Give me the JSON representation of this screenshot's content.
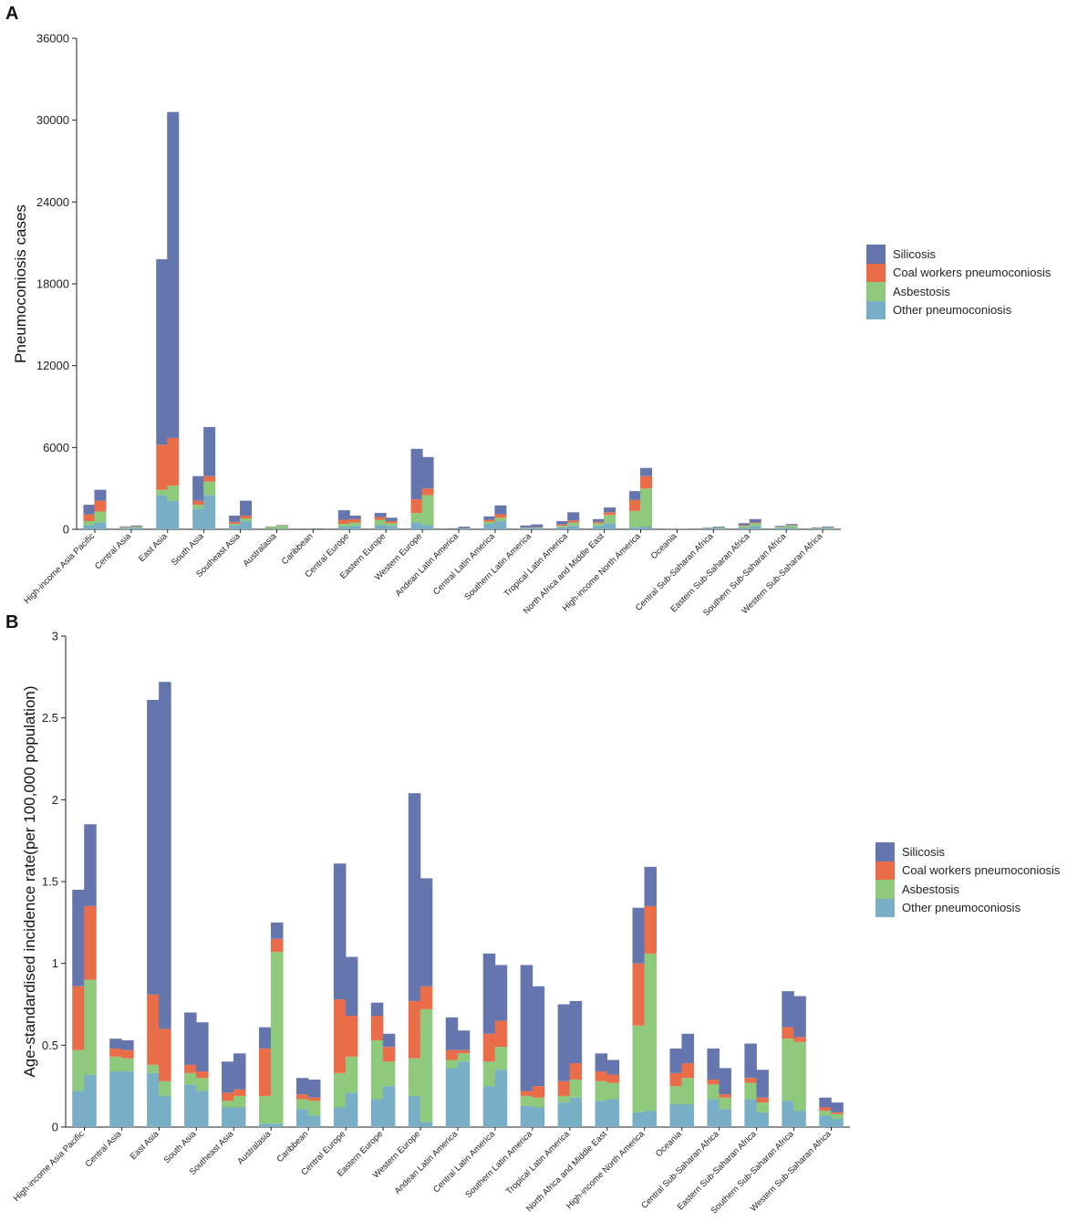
{
  "chart_data": [
    {
      "panel": "A",
      "type": "bar",
      "stacked": true,
      "title": "",
      "xlabel": "",
      "ylabel": "Pneumoconiosis cases",
      "ylim": [
        0,
        36000
      ],
      "yticks": [
        "0",
        "6000",
        "12000",
        "18000",
        "24000",
        "30000",
        "36000"
      ],
      "bars_per_category": 2,
      "categories": [
        "High-income Asia Pacific",
        "Central Asia",
        "East Asia",
        "South Asia",
        "Southeast Asia",
        "Australasia",
        "Caribbean",
        "Central Europe",
        "Eastern Europe",
        "Western Europe",
        "Andean Latin America",
        "Central Latin America",
        "Southern Latin America",
        "Tropical Latin America",
        "North Africa and Middle East",
        "High-income North America",
        "Oceania",
        "Central Sub-Saharan Africa",
        "Eastern Sub-Saharan Africa",
        "Southern Sub-Saharan Africa",
        "Western Sub-Saharan Africa"
      ],
      "series": [
        {
          "name": "Other pneumoconiosis",
          "color": "#78afc6",
          "values": [
            [
              300,
              500
            ],
            [
              80,
              100
            ],
            [
              2500,
              2100
            ],
            [
              1500,
              2500
            ],
            [
              300,
              600
            ],
            [
              20,
              30
            ],
            [
              10,
              10
            ],
            [
              200,
              250
            ],
            [
              300,
              250
            ],
            [
              500,
              300
            ],
            [
              20,
              40
            ],
            [
              400,
              600
            ],
            [
              80,
              100
            ],
            [
              150,
              250
            ],
            [
              250,
              450
            ],
            [
              150,
              200
            ],
            [
              5,
              5
            ],
            [
              30,
              60
            ],
            [
              100,
              250
            ],
            [
              80,
              100
            ],
            [
              40,
              80
            ]
          ]
        },
        {
          "name": "Asbestosis",
          "color": "#8ec97c",
          "values": [
            [
              300,
              800
            ],
            [
              60,
              80
            ],
            [
              400,
              1100
            ],
            [
              300,
              1000
            ],
            [
              100,
              200
            ],
            [
              150,
              250
            ],
            [
              10,
              20
            ],
            [
              200,
              250
            ],
            [
              400,
              200
            ],
            [
              700,
              2200
            ],
            [
              10,
              20
            ],
            [
              150,
              250
            ],
            [
              30,
              30
            ],
            [
              100,
              250
            ],
            [
              200,
              600
            ],
            [
              1200,
              2800
            ],
            [
              5,
              5
            ],
            [
              20,
              40
            ],
            [
              150,
              200
            ],
            [
              80,
              180
            ],
            [
              30,
              50
            ]
          ]
        },
        {
          "name": "Coal workers pneumoconiosis",
          "color": "#ea6d4a",
          "values": [
            [
              500,
              800
            ],
            [
              20,
              30
            ],
            [
              3300,
              3500
            ],
            [
              300,
              400
            ],
            [
              150,
              200
            ],
            [
              20,
              20
            ],
            [
              5,
              5
            ],
            [
              300,
              250
            ],
            [
              200,
              150
            ],
            [
              1000,
              500
            ],
            [
              5,
              5
            ],
            [
              150,
              250
            ],
            [
              20,
              30
            ],
            [
              100,
              150
            ],
            [
              100,
              200
            ],
            [
              800,
              900
            ],
            [
              2,
              2
            ],
            [
              10,
              10
            ],
            [
              50,
              50
            ],
            [
              20,
              30
            ],
            [
              10,
              10
            ]
          ]
        },
        {
          "name": "Silicosis",
          "color": "#6575ad",
          "values": [
            [
              700,
              800
            ],
            [
              50,
              70
            ],
            [
              13600,
              23900
            ],
            [
              1800,
              3600
            ],
            [
              450,
              1100
            ],
            [
              20,
              20
            ],
            [
              30,
              40
            ],
            [
              700,
              250
            ],
            [
              300,
              250
            ],
            [
              3700,
              2300
            ],
            [
              40,
              120
            ],
            [
              250,
              650
            ],
            [
              150,
              200
            ],
            [
              250,
              600
            ],
            [
              200,
              350
            ],
            [
              650,
              600
            ],
            [
              3,
              3
            ],
            [
              50,
              80
            ],
            [
              150,
              250
            ],
            [
              70,
              80
            ],
            [
              50,
              60
            ]
          ]
        }
      ]
    },
    {
      "panel": "B",
      "type": "bar",
      "stacked": true,
      "title": "",
      "xlabel": "",
      "ylabel": "Age-standardised incidence rate(per 100,000 population)",
      "ylim": [
        0,
        3
      ],
      "yticks": [
        "0",
        "0.5",
        "1",
        "1.5",
        "2",
        "2.5",
        "3"
      ],
      "bars_per_category": 2,
      "categories": [
        "High-income Asia Pacific",
        "Central Asia",
        "East Asia",
        "South Asia",
        "Southeast Asia",
        "Australasia",
        "Caribbean",
        "Central Europe",
        "Eastern Europe",
        "Western Europe",
        "Andean Latin America",
        "Central Latin America",
        "Southern Latin America",
        "Tropical Latin America",
        "North Africa and Middle East",
        "High-income North America",
        "Oceania",
        "Central Sub-Saharan Africa",
        "Eastern Sub-Saharan Africa",
        "Southern Sub-Saharan Africa",
        "Western Sub-Saharan Africa"
      ],
      "series": [
        {
          "name": "Other pneumoconiosis",
          "color": "#78afc6",
          "values": [
            [
              0.22,
              0.32
            ],
            [
              0.34,
              0.34
            ],
            [
              0.33,
              0.19
            ],
            [
              0.26,
              0.22
            ],
            [
              0.12,
              0.12
            ],
            [
              0.02,
              0.02
            ],
            [
              0.11,
              0.07
            ],
            [
              0.12,
              0.21
            ],
            [
              0.17,
              0.25
            ],
            [
              0.19,
              0.03
            ],
            [
              0.36,
              0.4
            ],
            [
              0.25,
              0.35
            ],
            [
              0.13,
              0.12
            ],
            [
              0.15,
              0.18
            ],
            [
              0.16,
              0.17
            ],
            [
              0.09,
              0.1
            ],
            [
              0.14,
              0.14
            ],
            [
              0.17,
              0.11
            ],
            [
              0.17,
              0.09
            ],
            [
              0.16,
              0.1
            ],
            [
              0.07,
              0.05
            ]
          ]
        },
        {
          "name": "Asbestosis",
          "color": "#8ec97c",
          "values": [
            [
              0.25,
              0.58
            ],
            [
              0.09,
              0.08
            ],
            [
              0.05,
              0.09
            ],
            [
              0.07,
              0.08
            ],
            [
              0.04,
              0.07
            ],
            [
              0.17,
              1.05
            ],
            [
              0.06,
              0.09
            ],
            [
              0.21,
              0.22
            ],
            [
              0.36,
              0.15
            ],
            [
              0.23,
              0.69
            ],
            [
              0.05,
              0.05
            ],
            [
              0.15,
              0.14
            ],
            [
              0.06,
              0.06
            ],
            [
              0.04,
              0.11
            ],
            [
              0.12,
              0.1
            ],
            [
              0.53,
              0.96
            ],
            [
              0.11,
              0.16
            ],
            [
              0.09,
              0.07
            ],
            [
              0.1,
              0.06
            ],
            [
              0.38,
              0.42
            ],
            [
              0.03,
              0.03
            ]
          ]
        },
        {
          "name": "Coal workers pneumoconiosis",
          "color": "#ea6d4a",
          "values": [
            [
              0.39,
              0.45
            ],
            [
              0.05,
              0.05
            ],
            [
              0.43,
              0.32
            ],
            [
              0.05,
              0.04
            ],
            [
              0.05,
              0.04
            ],
            [
              0.29,
              0.08
            ],
            [
              0.03,
              0.02
            ],
            [
              0.45,
              0.25
            ],
            [
              0.15,
              0.09
            ],
            [
              0.35,
              0.14
            ],
            [
              0.06,
              0.02
            ],
            [
              0.17,
              0.16
            ],
            [
              0.03,
              0.07
            ],
            [
              0.09,
              0.1
            ],
            [
              0.06,
              0.05
            ],
            [
              0.38,
              0.29
            ],
            [
              0.08,
              0.09
            ],
            [
              0.03,
              0.02
            ],
            [
              0.03,
              0.03
            ],
            [
              0.07,
              0.03
            ],
            [
              0.02,
              0.01
            ]
          ]
        },
        {
          "name": "Silicosis",
          "color": "#6575ad",
          "values": [
            [
              0.59,
              0.5
            ],
            [
              0.06,
              0.06
            ],
            [
              1.8,
              2.12
            ],
            [
              0.32,
              0.3
            ],
            [
              0.19,
              0.22
            ],
            [
              0.13,
              0.1
            ],
            [
              0.1,
              0.11
            ],
            [
              0.83,
              0.36
            ],
            [
              0.08,
              0.08
            ],
            [
              1.27,
              0.66
            ],
            [
              0.2,
              0.12
            ],
            [
              0.49,
              0.34
            ],
            [
              0.77,
              0.61
            ],
            [
              0.47,
              0.38
            ],
            [
              0.11,
              0.09
            ],
            [
              0.34,
              0.24
            ],
            [
              0.15,
              0.18
            ],
            [
              0.19,
              0.16
            ],
            [
              0.21,
              0.17
            ],
            [
              0.22,
              0.25
            ],
            [
              0.06,
              0.06
            ]
          ]
        }
      ]
    }
  ],
  "panels": [
    {
      "letter": "A",
      "legend": [
        "Silicosis",
        "Coal workers pneumoconiosis",
        "Asbestosis",
        "Other pneumoconiosis"
      ]
    },
    {
      "letter": "B",
      "legend": [
        "Silicosis",
        "Coal workers pneumoconiosis",
        "Asbestosis",
        "Other pneumoconiosis"
      ]
    }
  ]
}
